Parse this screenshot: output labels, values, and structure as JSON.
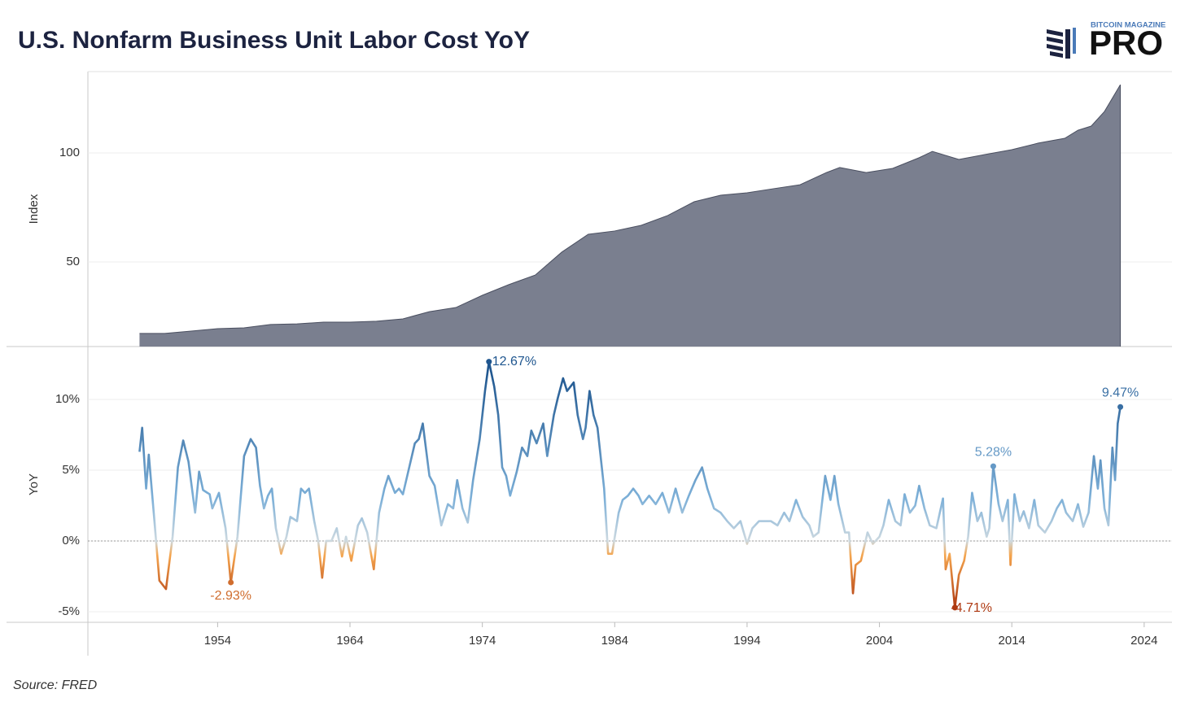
{
  "title": "U.S. Nonfarm Business Unit Labor Cost YoY",
  "source": "Source: FRED",
  "logo": {
    "top": "BITCOIN MAGAZINE",
    "main": "PRO"
  },
  "chart_data": [
    {
      "type": "area",
      "ylabel": "Index",
      "color": "#7a7f8f",
      "grid": true,
      "xlim": [
        1944.2,
        2026.1
      ],
      "ylim": [
        11.2,
        137.3
      ],
      "yticks": [
        50,
        100
      ],
      "x": [
        1948.1,
        1950,
        1952,
        1954,
        1956,
        1958,
        1960,
        1962,
        1964,
        1966,
        1968,
        1970,
        1972,
        1974,
        1976,
        1978,
        1980,
        1982,
        1984,
        1986,
        1988,
        1990,
        1992,
        1994,
        1996,
        1998,
        2000,
        2001,
        2003,
        2005,
        2007,
        2008,
        2010,
        2012,
        2014,
        2016,
        2018,
        2019,
        2020,
        2021,
        2022.2
      ],
      "values": [
        17.2,
        17.2,
        18.3,
        19.4,
        19.8,
        21.3,
        21.6,
        22.4,
        22.4,
        22.8,
        23.9,
        27.2,
        29.1,
        34.7,
        39.6,
        44.0,
        54.5,
        62.7,
        64.2,
        66.8,
        71.3,
        77.6,
        80.6,
        81.7,
        83.6,
        85.4,
        91.0,
        93.3,
        91.0,
        92.9,
        97.8,
        100.7,
        97.0,
        99.3,
        101.5,
        104.5,
        106.7,
        110.4,
        112.3,
        119.0,
        131.3
      ]
    },
    {
      "type": "line",
      "ylabel": "YoY",
      "grid": true,
      "zero_line": true,
      "xlim": [
        1944.2,
        2026.1
      ],
      "ylim": [
        -5.75,
        13.74
      ],
      "yticks": [
        {
          "value": -5,
          "label": "-5%"
        },
        {
          "value": 0,
          "label": "0%"
        },
        {
          "value": 5,
          "label": "5%"
        },
        {
          "value": 10,
          "label": "10%"
        }
      ],
      "xticks": [
        1954,
        1964,
        1974,
        1984,
        1994,
        2004,
        2014,
        2024
      ],
      "color_scale": [
        {
          "value": 12,
          "color": "#1f568f"
        },
        {
          "value": 3,
          "color": "#7db0d8"
        },
        {
          "value": 0,
          "color": "#cdd9e0"
        },
        {
          "value": -1,
          "color": "#f5a54e"
        },
        {
          "value": -5,
          "color": "#a8300b"
        }
      ],
      "x": [
        1948.1,
        1948.3,
        1948.6,
        1948.8,
        1949.2,
        1949.6,
        1950.1,
        1950.6,
        1951.0,
        1951.4,
        1951.8,
        1952.3,
        1952.6,
        1952.9,
        1953.4,
        1953.6,
        1954.1,
        1954.6,
        1955.0,
        1955.5,
        1956.0,
        1956.5,
        1956.9,
        1957.2,
        1957.5,
        1957.8,
        1958.1,
        1958.4,
        1958.8,
        1959.2,
        1959.5,
        1960.0,
        1960.3,
        1960.6,
        1960.9,
        1961.3,
        1961.6,
        1961.9,
        1962.2,
        1962.6,
        1963.0,
        1963.4,
        1963.7,
        1964.1,
        1964.6,
        1964.9,
        1965.3,
        1965.8,
        1966.2,
        1966.6,
        1966.9,
        1967.4,
        1967.7,
        1968.0,
        1968.4,
        1968.9,
        1969.2,
        1969.5,
        1970.0,
        1970.4,
        1970.9,
        1971.4,
        1971.8,
        1972.1,
        1972.5,
        1972.9,
        1973.3,
        1973.8,
        1974.2,
        1974.5,
        1974.9,
        1975.2,
        1975.5,
        1975.8,
        1976.1,
        1976.6,
        1977.0,
        1977.4,
        1977.7,
        1978.1,
        1978.6,
        1978.9,
        1979.4,
        1979.7,
        1980.1,
        1980.4,
        1980.9,
        1981.2,
        1981.6,
        1981.8,
        1982.1,
        1982.4,
        1982.7,
        1983.2,
        1983.5,
        1983.8,
        1984.3,
        1984.6,
        1985.0,
        1985.4,
        1985.8,
        1986.1,
        1986.6,
        1987.1,
        1987.6,
        1988.1,
        1988.6,
        1989.1,
        1989.6,
        1990.1,
        1990.6,
        1991.0,
        1991.5,
        1992.0,
        1992.5,
        1993.0,
        1993.5,
        1994.0,
        1994.4,
        1994.9,
        1995.4,
        1995.8,
        1996.3,
        1996.8,
        1997.2,
        1997.7,
        1998.2,
        1998.7,
        1999.0,
        1999.4,
        1999.9,
        2000.3,
        2000.6,
        2000.9,
        2001.4,
        2001.7,
        2002.0,
        2002.2,
        2002.6,
        2003.1,
        2003.5,
        2004.0,
        2004.3,
        2004.7,
        2005.2,
        2005.6,
        2005.9,
        2006.3,
        2006.7,
        2007.0,
        2007.4,
        2007.8,
        2008.3,
        2008.8,
        2009.0,
        2009.3,
        2009.7,
        2010.0,
        2010.4,
        2010.7,
        2011.0,
        2011.4,
        2011.7,
        2012.1,
        2012.3,
        2012.6,
        2013.0,
        2013.3,
        2013.7,
        2013.9,
        2014.2,
        2014.6,
        2014.9,
        2015.3,
        2015.7,
        2016.0,
        2016.5,
        2017.0,
        2017.4,
        2017.8,
        2018.1,
        2018.6,
        2019.0,
        2019.4,
        2019.8,
        2020.2,
        2020.5,
        2020.7,
        2021.0,
        2021.3,
        2021.6,
        2021.8,
        2022.0,
        2022.2
      ],
      "values": [
        6.3,
        8.0,
        3.7,
        6.1,
        1.7,
        -2.8,
        -3.4,
        0.3,
        5.2,
        7.1,
        5.6,
        2.0,
        4.9,
        3.6,
        3.3,
        2.3,
        3.4,
        0.9,
        -2.93,
        0.3,
        6.0,
        7.2,
        6.6,
        3.9,
        2.3,
        3.2,
        3.7,
        0.9,
        -0.9,
        0.3,
        1.7,
        1.4,
        3.7,
        3.4,
        3.7,
        1.4,
        0,
        -2.6,
        0,
        0,
        0.9,
        -1.1,
        0.3,
        -1.4,
        1.1,
        1.6,
        0.6,
        -2.0,
        2.0,
        3.7,
        4.6,
        3.4,
        3.7,
        3.3,
        4.9,
        6.9,
        7.2,
        8.3,
        4.6,
        3.9,
        1.1,
        2.6,
        2.3,
        4.3,
        2.3,
        1.3,
        4.3,
        7.2,
        10.6,
        12.67,
        10.9,
        8.9,
        5.2,
        4.6,
        3.2,
        4.9,
        6.6,
        6.0,
        7.8,
        6.9,
        8.3,
        6.0,
        8.9,
        10.1,
        11.5,
        10.6,
        11.2,
        8.9,
        7.2,
        8.0,
        10.6,
        8.9,
        8.0,
        3.7,
        -0.9,
        -0.9,
        2.0,
        2.9,
        3.2,
        3.7,
        3.2,
        2.6,
        3.2,
        2.6,
        3.4,
        2.0,
        3.7,
        2.0,
        3.2,
        4.3,
        5.2,
        3.7,
        2.3,
        2.0,
        1.4,
        0.9,
        1.4,
        -0.2,
        0.9,
        1.4,
        1.4,
        1.4,
        1.1,
        2.0,
        1.4,
        2.9,
        1.7,
        1.1,
        0.3,
        0.6,
        4.6,
        2.9,
        4.6,
        2.6,
        0.6,
        0.6,
        -3.7,
        -1.7,
        -1.4,
        0.6,
        -0.2,
        0.3,
        1.1,
        2.9,
        1.4,
        1.1,
        3.3,
        2.0,
        2.5,
        3.9,
        2.3,
        1.1,
        0.9,
        3.0,
        -2.0,
        -0.9,
        -4.71,
        -2.4,
        -1.4,
        0.3,
        3.4,
        1.4,
        2.0,
        0.3,
        0.9,
        5.28,
        2.6,
        1.4,
        2.9,
        -1.7,
        3.3,
        1.4,
        2.1,
        0.9,
        2.9,
        1.1,
        0.6,
        1.4,
        2.3,
        2.9,
        2.0,
        1.4,
        2.6,
        1.0,
        2.0,
        6.0,
        3.7,
        5.7,
        2.3,
        1.1,
        6.6,
        4.3,
        8.3,
        9.47
      ],
      "value_labels": [
        null,
        null,
        null,
        null,
        null,
        null,
        null,
        null,
        null,
        null,
        null,
        null,
        null,
        null,
        null,
        null,
        null,
        null,
        "-2.93%",
        null,
        null,
        null,
        null,
        null,
        null,
        null,
        null,
        null,
        null,
        null,
        null,
        null,
        null,
        null,
        null,
        null,
        null,
        null,
        null,
        null,
        null,
        null,
        null,
        null,
        null,
        null,
        null,
        null,
        null,
        null,
        null,
        null,
        null,
        null,
        null,
        null,
        null,
        null,
        null,
        null,
        null,
        null,
        null,
        null,
        null,
        null,
        null,
        null,
        null,
        "12.67%",
        null,
        null,
        null,
        null,
        null,
        null,
        null,
        null,
        null,
        null,
        null,
        null,
        null,
        null,
        null,
        null,
        null,
        null,
        null,
        null,
        null,
        null,
        null,
        null,
        null,
        null,
        null,
        null,
        null,
        null,
        null,
        null,
        null,
        null,
        null,
        null,
        null,
        null,
        null,
        null,
        null,
        null,
        null,
        null,
        null,
        null,
        null,
        null,
        null,
        null,
        null,
        null,
        null,
        null,
        null,
        null,
        null,
        null,
        null,
        null,
        null,
        null,
        null,
        null,
        null,
        null,
        null,
        null,
        null,
        null,
        null,
        null,
        null,
        null,
        null,
        null,
        null,
        null,
        null,
        null,
        null,
        null,
        null,
        null,
        null,
        null,
        "-4.71%",
        null,
        null,
        null,
        null,
        null,
        null,
        null,
        null,
        "5.28%",
        null,
        null,
        null,
        null,
        null,
        null,
        null,
        null,
        null,
        null,
        null,
        null,
        null,
        null,
        null,
        null,
        null,
        null,
        null,
        null,
        null,
        null,
        null,
        null,
        null,
        null,
        null,
        "9.47%"
      ]
    }
  ]
}
